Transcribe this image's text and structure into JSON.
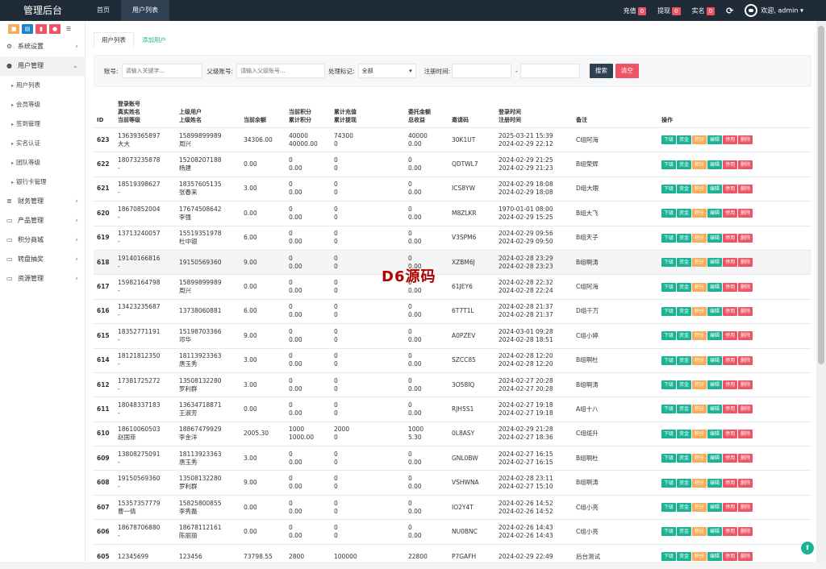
{
  "brand": "管理后台",
  "topnav": [
    "首页",
    "用户列表"
  ],
  "topright": {
    "recharge": "充值",
    "recharge_count": "0",
    "withdraw": "提现",
    "withdraw_count": "0",
    "realname": "实名",
    "realname_count": "0",
    "welcome": "欢迎, admin"
  },
  "colors": {
    "topbar": "#1f2c38",
    "accent": "#1ab394",
    "danger": "#ed5565",
    "warning": "#f8ac59",
    "primary_btn": "#2f4050"
  },
  "sidebar": {
    "icon_colors": [
      "#f8ac59",
      "#1c84c6",
      "#ed5565",
      "#ed5565"
    ],
    "items": [
      {
        "label": "系统设置",
        "icon": "gears-icon"
      },
      {
        "label": "用户管理",
        "icon": "user-icon"
      },
      {
        "label": "财务管理",
        "icon": "database-icon"
      },
      {
        "label": "产品管理",
        "icon": "monitor-icon"
      },
      {
        "label": "积分商城",
        "icon": "monitor-icon"
      },
      {
        "label": "转盘抽奖",
        "icon": "monitor-icon"
      },
      {
        "label": "资源管理",
        "icon": "monitor-icon"
      }
    ],
    "sub": [
      "用户列表",
      "会员等级",
      "签到管理",
      "实名认证",
      "团队等级",
      "银行卡管理"
    ]
  },
  "tabs": [
    "用户列表",
    "添加用户"
  ],
  "filter": {
    "account_label": "账号:",
    "account_ph": "请输入关键字...",
    "parent_label": "父级账号:",
    "parent_ph": "请输入父级账号...",
    "mark_label": "处理标记:",
    "mark_value": "全部",
    "time_label": "注册时间:",
    "dash": "-",
    "search": "搜索",
    "clear": "清空"
  },
  "columns": [
    "ID",
    "登录账号\n真实姓名\n当前等级",
    "上级用户\n上级姓名",
    "当前余额",
    "当前积分\n累计积分",
    "累计充值\n累计提现",
    "委托金额\n总收益",
    "邀请码",
    "登录时间\n注册时间",
    "备注",
    "操作"
  ],
  "ops": [
    "下级",
    "资金",
    "积分",
    "编辑",
    "停用",
    "删除"
  ],
  "rows": [
    {
      "id": "623",
      "acc": "13639365897",
      "name": "大大",
      "pacc": "15899899989",
      "pname": "周兴",
      "bal": "34306.00",
      "pt": "40000",
      "pt2": "40000.00",
      "rc": "74300",
      "wd": "0",
      "en": "40000",
      "en2": "0.00",
      "code": "30K1UT",
      "t1": "2025-03-21 15:39",
      "t2": "2024-02-29 22:12",
      "note": "C组阿海"
    },
    {
      "id": "622",
      "acc": "18073235878",
      "name": "-",
      "pacc": "15208207188",
      "pname": "杨建",
      "bal": "0.00",
      "pt": "0",
      "pt2": "0.00",
      "rc": "0",
      "wd": "0",
      "en": "0",
      "en2": "0.00",
      "code": "QDTWL7",
      "t1": "2024-02-29 21:25",
      "t2": "2024-02-29 21:23",
      "note": "B组荣辉"
    },
    {
      "id": "621",
      "acc": "18519398627",
      "name": "-",
      "pacc": "18357605135",
      "pname": "张春来",
      "bal": "3.00",
      "pt": "0",
      "pt2": "0.00",
      "rc": "0",
      "wd": "0",
      "en": "0",
      "en2": "0.00",
      "code": "ICS8YW",
      "t1": "2024-02-29 18:08",
      "t2": "2024-02-29 18:08",
      "note": "D组大眼"
    },
    {
      "id": "620",
      "acc": "18670852004",
      "name": "-",
      "pacc": "17674508642",
      "pname": "李强",
      "bal": "0.00",
      "pt": "0",
      "pt2": "0.00",
      "rc": "0",
      "wd": "0",
      "en": "0",
      "en2": "0.00",
      "code": "M8ZLKR",
      "t1": "1970-01-01 08:00",
      "t2": "2024-02-29 15:25",
      "note": "B组大飞"
    },
    {
      "id": "619",
      "acc": "13713240057",
      "name": "-",
      "pacc": "15519351978",
      "pname": "杜中银",
      "bal": "6.00",
      "pt": "0",
      "pt2": "0.00",
      "rc": "0",
      "wd": "0",
      "en": "0",
      "en2": "0.00",
      "code": "V3SPM6",
      "t1": "2024-02-29 09:56",
      "t2": "2024-02-29 09:50",
      "note": "B组天子"
    },
    {
      "id": "618",
      "acc": "19140166816",
      "name": "-",
      "pacc": "19150569360",
      "pname": "",
      "bal": "9.00",
      "pt": "0",
      "pt2": "0.00",
      "rc": "0",
      "wd": "0",
      "en": "0",
      "en2": "0.00",
      "code": "XZBM6J",
      "t1": "2024-02-28 23:29",
      "t2": "2024-02-28 23:23",
      "note": "B组啊涛"
    },
    {
      "id": "617",
      "acc": "15982164798",
      "name": "-",
      "pacc": "15899899989",
      "pname": "周兴",
      "bal": "0.00",
      "pt": "0",
      "pt2": "0.00",
      "rc": "0",
      "wd": "0",
      "en": "0",
      "en2": "0.00",
      "code": "61JEY6",
      "t1": "2024-02-28 22:32",
      "t2": "2024-02-28 22:24",
      "note": "C组阿海"
    },
    {
      "id": "616",
      "acc": "13423235687",
      "name": "-",
      "pacc": "13738060881",
      "pname": "",
      "bal": "6.00",
      "pt": "0",
      "pt2": "0.00",
      "rc": "0",
      "wd": "0",
      "en": "0",
      "en2": "0.00",
      "code": "6T7T1L",
      "t1": "2024-02-28 21:37",
      "t2": "2024-02-28 21:37",
      "note": "D组千万"
    },
    {
      "id": "615",
      "acc": "18352771191",
      "name": "-",
      "pacc": "15198703366",
      "pname": "邓华",
      "bal": "9.00",
      "pt": "0",
      "pt2": "0.00",
      "rc": "0",
      "wd": "0",
      "en": "0",
      "en2": "0.00",
      "code": "A0PZEV",
      "t1": "2024-03-01 09:28",
      "t2": "2024-02-28 18:51",
      "note": "C组小婷"
    },
    {
      "id": "614",
      "acc": "18121812350",
      "name": "-",
      "pacc": "18113923363",
      "pname": "唐玉秀",
      "bal": "3.00",
      "pt": "0",
      "pt2": "0.00",
      "rc": "0",
      "wd": "0",
      "en": "0",
      "en2": "0.00",
      "code": "SZCC85",
      "t1": "2024-02-28 12:20",
      "t2": "2024-02-28 12:20",
      "note": "B组啊杜"
    },
    {
      "id": "612",
      "acc": "17381725272",
      "name": "-",
      "pacc": "13508132280",
      "pname": "罗利群",
      "bal": "3.00",
      "pt": "0",
      "pt2": "0.00",
      "rc": "0",
      "wd": "0",
      "en": "0",
      "en2": "0.00",
      "code": "3O58IQ",
      "t1": "2024-02-27 20:28",
      "t2": "2024-02-27 20:28",
      "note": "B组啊涛"
    },
    {
      "id": "611",
      "acc": "18048337183",
      "name": "-",
      "pacc": "13634718871",
      "pname": "王淑芳",
      "bal": "0.00",
      "pt": "0",
      "pt2": "0.00",
      "rc": "0",
      "wd": "0",
      "en": "0",
      "en2": "0.00",
      "code": "RJH5S1",
      "t1": "2024-02-27 19:18",
      "t2": "2024-02-27 19:18",
      "note": "A组十八"
    },
    {
      "id": "610",
      "acc": "18610060503",
      "name": "赵国菲",
      "pacc": "18867479929",
      "pname": "李金洋",
      "bal": "2005.30",
      "pt": "1000",
      "pt2": "1000.00",
      "rc": "2000",
      "wd": "0",
      "en": "1000",
      "en2": "5.30",
      "code": "0L8ASY",
      "t1": "2024-02-29 21:28",
      "t2": "2024-02-27 18:36",
      "note": "C组缆升"
    },
    {
      "id": "609",
      "acc": "13808275091",
      "name": "-",
      "pacc": "18113923363",
      "pname": "唐玉秀",
      "bal": "3.00",
      "pt": "0",
      "pt2": "0.00",
      "rc": "0",
      "wd": "0",
      "en": "0",
      "en2": "0.00",
      "code": "GNL0BW",
      "t1": "2024-02-27 16:15",
      "t2": "2024-02-27 16:15",
      "note": "B组啊杜"
    },
    {
      "id": "608",
      "acc": "19150569360",
      "name": "-",
      "pacc": "13508132280",
      "pname": "罗利群",
      "bal": "9.00",
      "pt": "0",
      "pt2": "0.00",
      "rc": "0",
      "wd": "0",
      "en": "0",
      "en2": "0.00",
      "code": "VSHWNA",
      "t1": "2024-02-28 23:11",
      "t2": "2024-02-27 15:10",
      "note": "B组啊涛"
    },
    {
      "id": "607",
      "acc": "15357357779",
      "name": "曹一倩",
      "pacc": "15825800855",
      "pname": "李秀磊",
      "bal": "0.00",
      "pt": "0",
      "pt2": "0.00",
      "rc": "0",
      "wd": "0",
      "en": "0",
      "en2": "0.00",
      "code": "IO2Y4T",
      "t1": "2024-02-26 14:52",
      "t2": "2024-02-26 14:52",
      "note": "C组小亮"
    },
    {
      "id": "606",
      "acc": "18678706880",
      "name": "-",
      "pacc": "18678112161",
      "pname": "陈丽丽",
      "bal": "0.00",
      "pt": "0",
      "pt2": "0.00",
      "rc": "0",
      "wd": "0",
      "en": "0",
      "en2": "0.00",
      "code": "NU0BNC",
      "t1": "2024-02-26 14:43",
      "t2": "2024-02-26 14:43",
      "note": "C组小亮"
    },
    {
      "id": "605",
      "acc": "12345699",
      "name": "",
      "pacc": "123456",
      "pname": "",
      "bal": "73798.55",
      "pt": "2800",
      "pt2": "",
      "rc": "100000",
      "wd": "",
      "en": "22800",
      "en2": "",
      "code": "P7GAFH",
      "t1": "2024-02-29 22:49",
      "t2": "",
      "note": "后台测试"
    }
  ],
  "watermark": "D6源码"
}
